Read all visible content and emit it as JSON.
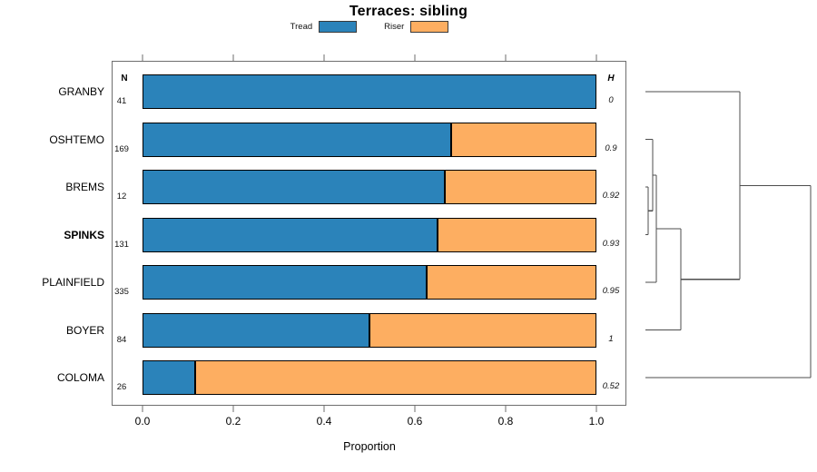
{
  "title": "Terraces: sibling",
  "legend": {
    "items": [
      {
        "label": "Tread",
        "color": "#2B83BA"
      },
      {
        "label": "Riser",
        "color": "#FDAE61"
      }
    ]
  },
  "chart_data": {
    "type": "bar",
    "orientation": "horizontal-stacked",
    "title": "Terraces: sibling",
    "xlabel": "Proportion",
    "xlim": [
      0,
      1
    ],
    "xticks": [
      0.0,
      0.2,
      0.4,
      0.6,
      0.8,
      1.0
    ],
    "xtick_labels": [
      "0.0",
      "0.2",
      "0.4",
      "0.6",
      "0.8",
      "1.0"
    ],
    "grid": false,
    "legend_position": "top",
    "categories": [
      "GRANBY",
      "OSHTEMO",
      "BREMS",
      "SPINKS",
      "PLAINFIELD",
      "BOYER",
      "COLOMA"
    ],
    "bold_category": "SPINKS",
    "series": [
      {
        "name": "Tread",
        "color": "#2B83BA",
        "values": [
          1.0,
          0.68,
          0.665,
          0.65,
          0.625,
          0.5,
          0.115
        ]
      },
      {
        "name": "Riser",
        "color": "#FDAE61",
        "values": [
          0.0,
          0.32,
          0.335,
          0.35,
          0.375,
          0.5,
          0.885
        ]
      }
    ],
    "n_header": "N",
    "n_values": [
      "41",
      "169",
      "12",
      "131",
      "335",
      "84",
      "26"
    ],
    "h_header": "H",
    "h_values": [
      "0",
      "0.9",
      "0.92",
      "0.93",
      "0.95",
      "1",
      "0.52"
    ],
    "bar_border_color": "#000000",
    "dendrogram": {
      "leaves": [
        "GRANBY",
        "OSHTEMO",
        "BREMS",
        "SPINKS",
        "PLAINFIELD",
        "BOYER",
        "COLOMA"
      ],
      "merges": [
        {
          "left": "BREMS",
          "right": "SPINKS",
          "height": 0.016
        },
        {
          "left": "OSHTEMO",
          "right": "#0",
          "height": 0.044
        },
        {
          "left": "#1",
          "right": "PLAINFIELD",
          "height": 0.066
        },
        {
          "left": "#2",
          "right": "BOYER",
          "height": 0.214
        },
        {
          "left": "GRANBY",
          "right": "#3",
          "height": 0.571
        },
        {
          "left": "#4",
          "right": "COLOMA",
          "height": 1.0
        }
      ],
      "line_color": "#4d4d4d"
    }
  }
}
